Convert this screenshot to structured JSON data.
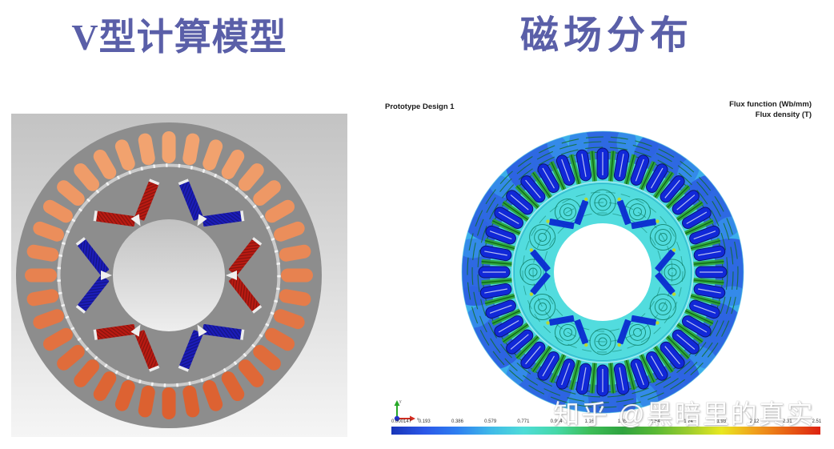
{
  "slide": {
    "background": "#FFFFFF"
  },
  "titles": {
    "left": "V型计算模型",
    "right": "磁场分布",
    "color": "#5A5FA8"
  },
  "left_model": {
    "label": "V-type IPM motor cross-section calculation model",
    "background_top": "#C3C3C3",
    "background_bottom": "#F5F5F5",
    "steel_color": "#8D8D8D",
    "slot_color_light": "#F2A470",
    "slot_color_dark": "#DC6030",
    "slot_count": 36,
    "pole_count": 6,
    "magnet_red": "#B91A12",
    "magnet_blue": "#1B1CB8",
    "pole_colors": [
      "blue",
      "red",
      "blue",
      "red",
      "blue",
      "red"
    ]
  },
  "fem_plot": {
    "title": "Prototype Design 1",
    "legend_line1": "Flux function (Wb/mm)",
    "legend_line2": "Flux density (T)",
    "slot_count": 36,
    "pole_count": 6,
    "outer_base": "#3FC0E8",
    "outer_blue": "#2B52E0",
    "field_cyan": "#4BD6DD",
    "slot_blue": "#1128D8",
    "tooth_green": "#2FA434",
    "line_green": "#0E6B14",
    "swirl_teal": "#0B7A62",
    "triad": {
      "x_color": "#D62B1F",
      "y_color": "#28A828",
      "origin_color": "#2233CC",
      "x_label": "x",
      "y_label": "y"
    },
    "colorbar": {
      "labels": [
        "0.000147",
        "0.193",
        "0.386",
        "0.579",
        "0.771",
        "0.964",
        "1.16",
        "1.35",
        "1.54",
        "1.74",
        "1.93",
        "2.12",
        "2.31",
        "2.51"
      ],
      "gradient": [
        "#1835B8",
        "#2B57E8",
        "#2E7FF0",
        "#3FB9E8",
        "#4FDCD8",
        "#45D8A8",
        "#3DBE58",
        "#2FA33F",
        "#58B834",
        "#9CCC2E",
        "#E8E820",
        "#F0A01C",
        "#E86014",
        "#DD2211"
      ]
    }
  },
  "watermark": {
    "text": "知乎 @黑暗里的真实",
    "color": "#FFFFFF"
  }
}
